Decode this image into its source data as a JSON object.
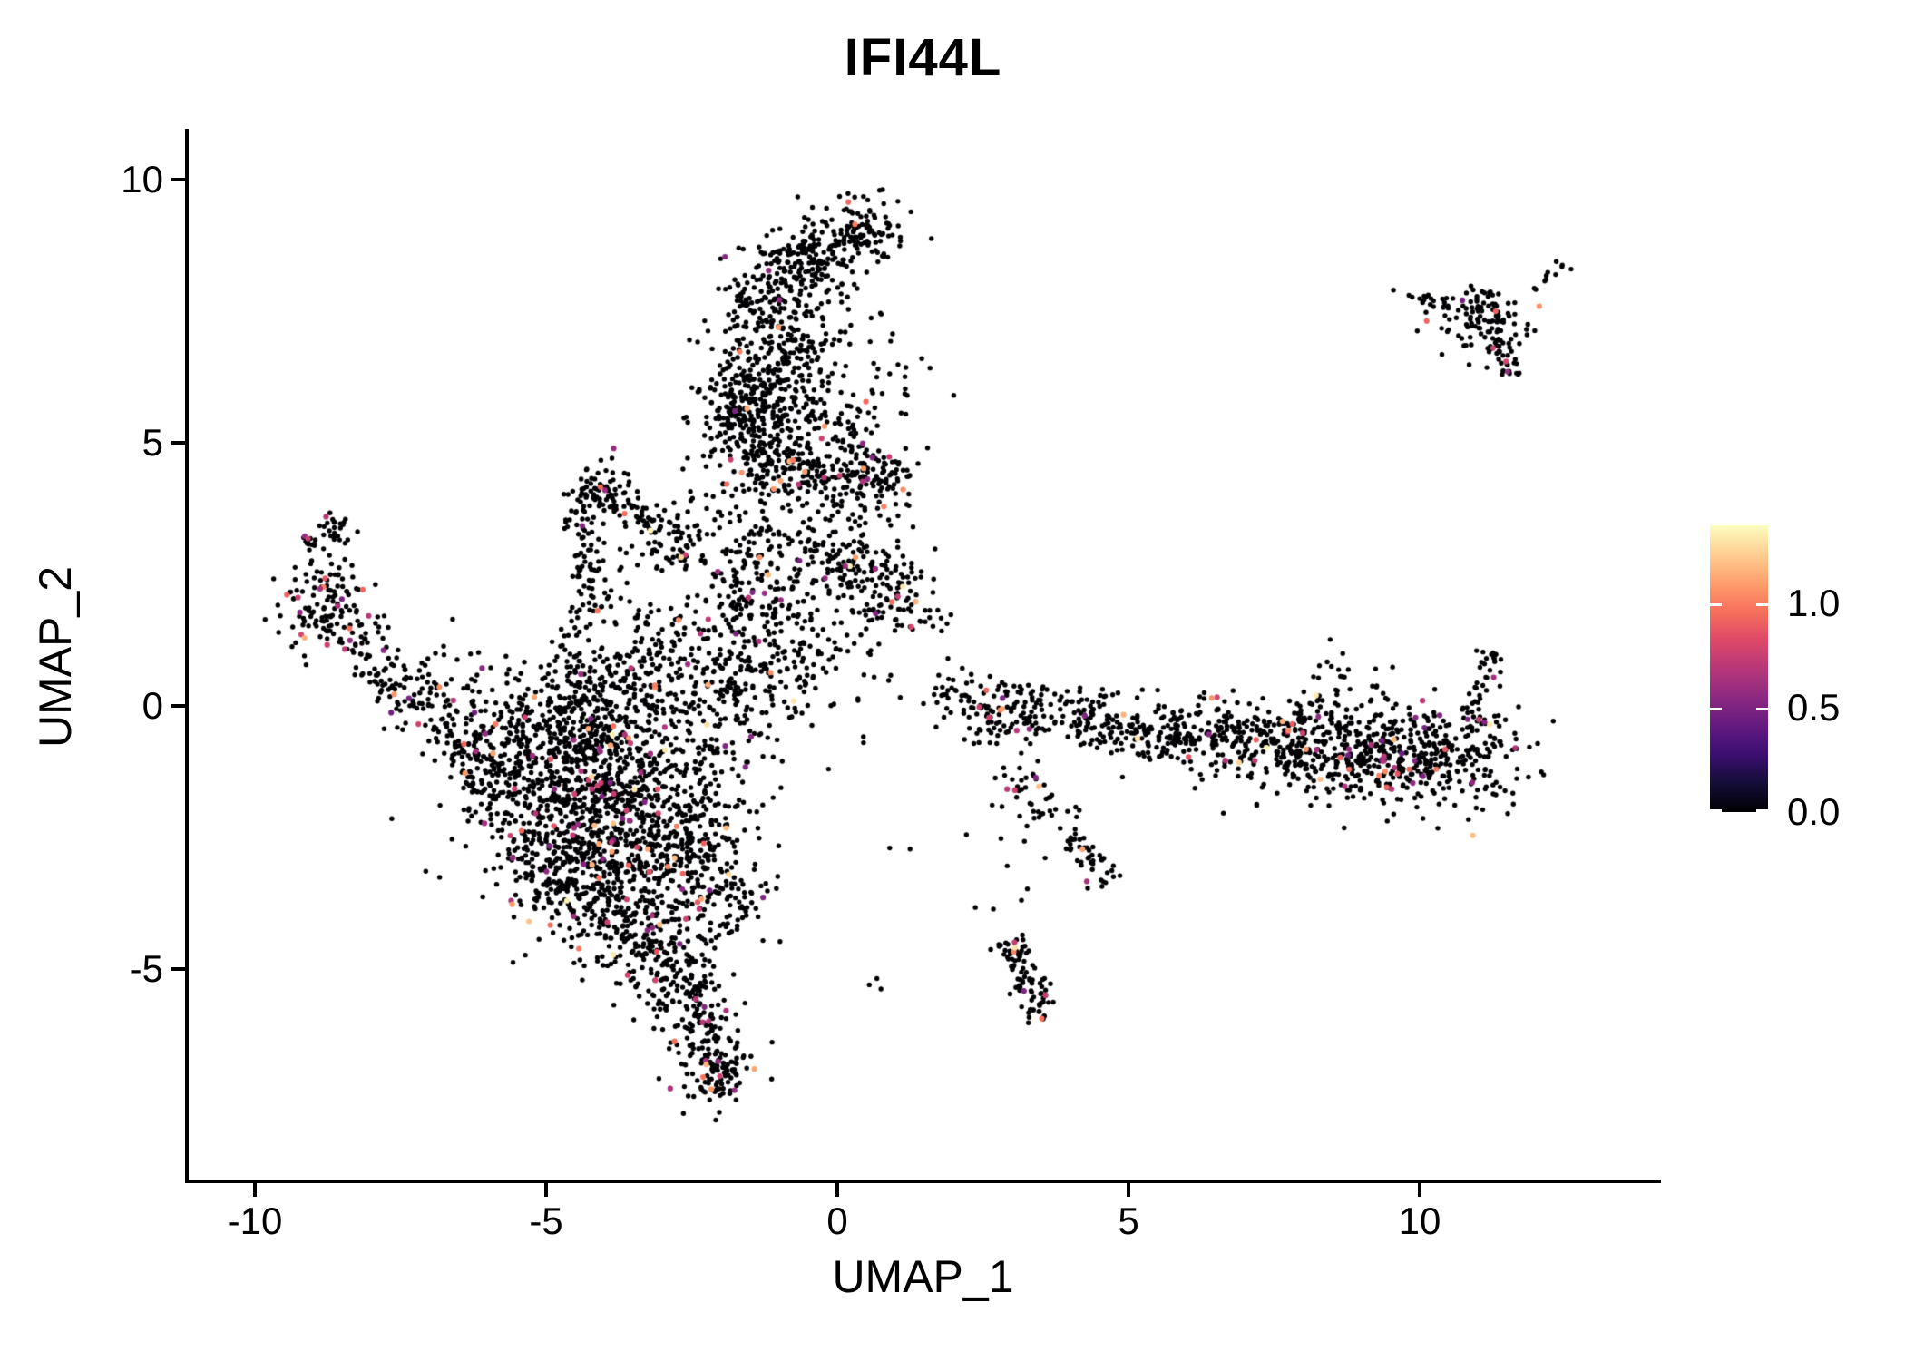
{
  "title": "IFI44L",
  "chart_data": {
    "type": "scatter",
    "title": "IFI44L",
    "xlabel": "UMAP_1",
    "ylabel": "UMAP_2",
    "x_ticks": [
      -10,
      -5,
      0,
      5,
      10
    ],
    "y_ticks": [
      10,
      5,
      0,
      -5
    ],
    "x_range": [
      -11.2,
      14.3
    ],
    "y_range": [
      -9.0,
      11.0
    ],
    "grid": false,
    "legend_position": "right",
    "point_radius_px": 2.7,
    "point_color_zero": "#000004",
    "colorbar": {
      "tick_labels": [
        "1.0",
        "0.5",
        "0.0"
      ],
      "tick_values": [
        1.0,
        0.5,
        0.0
      ],
      "vmin": 0.0,
      "vmax": 1.374,
      "colormap": "magma",
      "stops": [
        "#000004",
        "#140E36",
        "#3B0F70",
        "#641A80",
        "#8C2981",
        "#B73779",
        "#DE4968",
        "#F7705C",
        "#FE9F6D",
        "#FECF92",
        "#FCFDBF"
      ]
    },
    "seed": 20240601,
    "colored_value_bands": [
      [
        0.45,
        0.8,
        0.62
      ],
      [
        0.85,
        1.2,
        0.3
      ],
      [
        1.25,
        1.374,
        0.08
      ]
    ],
    "cluster_format": "gauss: [g,cx,cy,sx,sy,n,coloredFraction]  line: [l,x1,y1,x2,y2,width,n,coloredFraction]",
    "clusters": [
      [
        "g",
        0.45,
        9.05,
        0.42,
        0.33,
        110,
        0.01
      ],
      [
        "g",
        -0.75,
        8.3,
        0.5,
        0.4,
        130,
        0.01
      ],
      [
        "g",
        -0.15,
        8.75,
        0.45,
        0.3,
        60,
        0.01
      ],
      [
        "g",
        -1.1,
        7.3,
        0.45,
        0.55,
        150,
        0.015
      ],
      [
        "g",
        -0.45,
        6.5,
        0.5,
        0.6,
        90,
        0.02
      ],
      [
        "g",
        -1.45,
        5.75,
        0.5,
        0.5,
        280,
        0.02
      ],
      [
        "g",
        -1.3,
        4.75,
        0.4,
        0.4,
        110,
        0.03
      ],
      [
        "l",
        -0.9,
        4.5,
        0.5,
        4.4,
        0.25,
        90,
        0.04
      ],
      [
        "g",
        0.75,
        4.35,
        0.28,
        0.28,
        70,
        0.08
      ],
      [
        "g",
        -0.3,
        3.3,
        0.7,
        0.7,
        150,
        0.04
      ],
      [
        "g",
        -1.55,
        3.1,
        0.3,
        0.75,
        90,
        0.03
      ],
      [
        "g",
        1.05,
        1.95,
        0.4,
        0.35,
        90,
        0.06
      ],
      [
        "g",
        0.3,
        2.6,
        0.35,
        0.3,
        60,
        0.04
      ],
      [
        "g",
        0.5,
        6.1,
        0.7,
        0.8,
        40,
        0.02
      ],
      [
        "l",
        -0.7,
        5.4,
        0.6,
        5.0,
        0.3,
        50,
        0.04
      ],
      [
        "g",
        -1.2,
        2.0,
        0.5,
        0.5,
        70,
        0.03
      ],
      [
        "g",
        -2.2,
        3.6,
        0.4,
        0.6,
        18,
        0.03
      ],
      [
        "l",
        -4.4,
        4.4,
        -2.45,
        2.95,
        0.22,
        130,
        0.05
      ],
      [
        "l",
        -4.35,
        4.2,
        -4.2,
        1.45,
        0.18,
        100,
        0.05
      ],
      [
        "g",
        -3.3,
        2.45,
        0.55,
        0.5,
        45,
        0.04
      ],
      [
        "g",
        -4.55,
        1.0,
        0.3,
        0.45,
        35,
        0.04
      ],
      [
        "l",
        -8.5,
        3.6,
        -9.1,
        2.9,
        0.15,
        40,
        0.12
      ],
      [
        "g",
        -8.85,
        2.35,
        0.25,
        0.3,
        40,
        0.08
      ],
      [
        "g",
        -8.75,
        1.8,
        0.4,
        0.3,
        80,
        0.08
      ],
      [
        "l",
        -8.4,
        1.5,
        -6.8,
        -0.4,
        0.3,
        130,
        0.07
      ],
      [
        "l",
        -6.8,
        -0.4,
        -6.0,
        -0.9,
        0.25,
        45,
        0.05
      ],
      [
        "g",
        -6.6,
        0.8,
        0.5,
        0.35,
        12,
        0.05
      ],
      [
        "g",
        -4.55,
        -1.35,
        0.85,
        0.8,
        480,
        0.05
      ],
      [
        "g",
        -3.55,
        -2.3,
        0.85,
        0.85,
        470,
        0.05
      ],
      [
        "g",
        -4.3,
        -0.25,
        1.0,
        0.5,
        280,
        0.05
      ],
      [
        "g",
        -3.5,
        0.55,
        1.1,
        0.4,
        150,
        0.04
      ],
      [
        "g",
        -2.85,
        1.2,
        0.5,
        0.3,
        45,
        0.04
      ],
      [
        "g",
        -5.75,
        -1.3,
        0.5,
        0.75,
        140,
        0.05
      ],
      [
        "g",
        -4.7,
        -3.1,
        0.65,
        0.6,
        240,
        0.05
      ],
      [
        "g",
        -3.6,
        -4.2,
        0.5,
        0.5,
        160,
        0.05
      ],
      [
        "g",
        -2.9,
        -4.9,
        0.4,
        0.45,
        110,
        0.06
      ],
      [
        "g",
        -2.4,
        -5.8,
        0.3,
        0.45,
        90,
        0.06
      ],
      [
        "g",
        -2.1,
        -6.85,
        0.3,
        0.4,
        130,
        0.06
      ],
      [
        "g",
        -2.55,
        -2.9,
        0.45,
        0.7,
        150,
        0.05
      ],
      [
        "g",
        -2.0,
        -1.6,
        0.45,
        0.9,
        80,
        0.04
      ],
      [
        "g",
        -1.75,
        -3.6,
        0.3,
        0.6,
        60,
        0.05
      ],
      [
        "g",
        -0.8,
        1.0,
        0.8,
        0.65,
        170,
        0.04
      ],
      [
        "g",
        -1.6,
        0.3,
        0.5,
        0.5,
        80,
        0.04
      ],
      [
        "l",
        1.7,
        0.45,
        2.9,
        -0.6,
        0.3,
        60,
        0.04
      ],
      [
        "l",
        2.9,
        -1.1,
        4.75,
        -3.35,
        0.18,
        80,
        0.07
      ],
      [
        "g",
        3.3,
        -2.2,
        0.5,
        0.5,
        15,
        0.05
      ],
      [
        "g",
        3.6,
        -0.1,
        0.7,
        0.3,
        120,
        0.05
      ],
      [
        "g",
        5.1,
        -0.4,
        0.9,
        0.3,
        150,
        0.05
      ],
      [
        "g",
        6.8,
        -0.55,
        0.9,
        0.35,
        200,
        0.05
      ],
      [
        "g",
        8.6,
        -0.9,
        0.9,
        0.45,
        330,
        0.06
      ],
      [
        "g",
        10.3,
        -1.0,
        0.75,
        0.5,
        280,
        0.06
      ],
      [
        "l",
        10.95,
        -0.3,
        11.3,
        1.0,
        0.12,
        40,
        0.1
      ],
      [
        "g",
        8.6,
        0.35,
        0.3,
        0.5,
        30,
        0.03
      ],
      [
        "g",
        9.35,
        0.2,
        0.15,
        0.25,
        12,
        0.03
      ],
      [
        "l",
        3.0,
        -4.4,
        3.55,
        -5.95,
        0.17,
        90,
        0.05
      ],
      [
        "g",
        11.05,
        7.3,
        0.45,
        0.32,
        100,
        0.07
      ],
      [
        "l",
        11.3,
        6.95,
        11.6,
        6.25,
        0.12,
        35,
        0.06
      ],
      [
        "l",
        10.0,
        7.78,
        10.65,
        7.6,
        0.07,
        14,
        0.05
      ],
      [
        "l",
        12.05,
        8.05,
        12.5,
        8.45,
        0.07,
        8,
        0.0
      ],
      [
        "g",
        11.0,
        7.75,
        0.25,
        0.15,
        15,
        0.05
      ]
    ],
    "singles": [
      [
        0.55,
        -5.3
      ],
      [
        0.75,
        -5.38
      ],
      [
        0.68,
        -5.18
      ],
      [
        2.37,
        -3.83
      ],
      [
        2.68,
        -3.86
      ],
      [
        0.9,
        -2.7
      ],
      [
        1.25,
        -2.72
      ],
      [
        0.7,
        6.4
      ],
      [
        1.2,
        5.9
      ],
      [
        0.2,
        5.7
      ],
      [
        1.55,
        4.9
      ],
      [
        1.3,
        3.4
      ],
      [
        -6.9,
        1.0
      ],
      [
        -9.35,
        1.5
      ],
      [
        -9.3,
        1.2
      ],
      [
        -9.15,
        0.95
      ],
      [
        -2.65,
        4.5
      ],
      [
        1.9,
        0.9
      ],
      [
        2.3,
        0.6
      ],
      [
        5.5,
        0.3
      ],
      [
        6.3,
        0.25
      ],
      [
        -0.15,
        -1.2
      ],
      [
        0.45,
        -0.7
      ],
      [
        12.6,
        8.3
      ],
      [
        9.55,
        7.9
      ],
      [
        1.45,
        6.6
      ],
      [
        2.0,
        5.9
      ]
    ]
  }
}
